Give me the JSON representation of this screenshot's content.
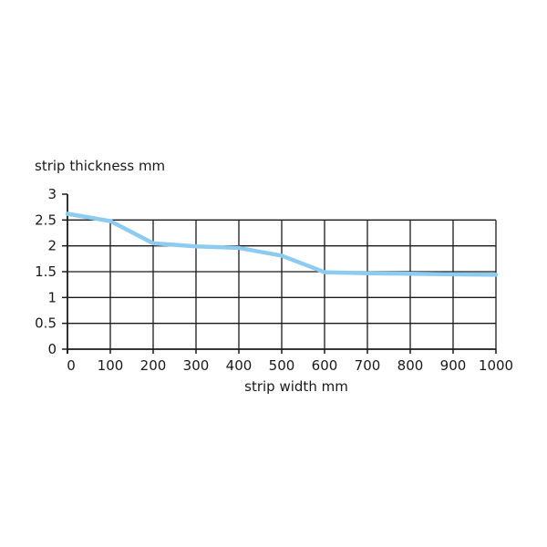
{
  "chart_data": {
    "type": "line",
    "title": "",
    "xlabel": "strip width mm",
    "ylabel": "strip thickness mm",
    "xlim": [
      0,
      1000
    ],
    "ylim": [
      0,
      3
    ],
    "x_ticks": [
      0,
      100,
      200,
      300,
      400,
      500,
      600,
      700,
      800,
      900,
      1000
    ],
    "x_tick_labels": [
      "0",
      "100",
      "200",
      "300",
      "400",
      "500",
      "600",
      "700",
      "800",
      "900",
      "1000"
    ],
    "y_ticks": [
      0,
      0.5,
      1,
      1.5,
      2,
      2.5,
      3
    ],
    "y_tick_labels": [
      "0",
      "0.5",
      "1",
      "1.5",
      "2",
      "2.5",
      "3"
    ],
    "grid": true,
    "grid_extent_y": 2.5,
    "series": [
      {
        "color": "#8dcbf0",
        "x": [
          0,
          100,
          200,
          300,
          400,
          500,
          600,
          700,
          800,
          900,
          1000
        ],
        "y": [
          2.62,
          2.48,
          2.05,
          1.99,
          1.96,
          1.81,
          1.49,
          1.47,
          1.46,
          1.45,
          1.44
        ]
      }
    ]
  }
}
